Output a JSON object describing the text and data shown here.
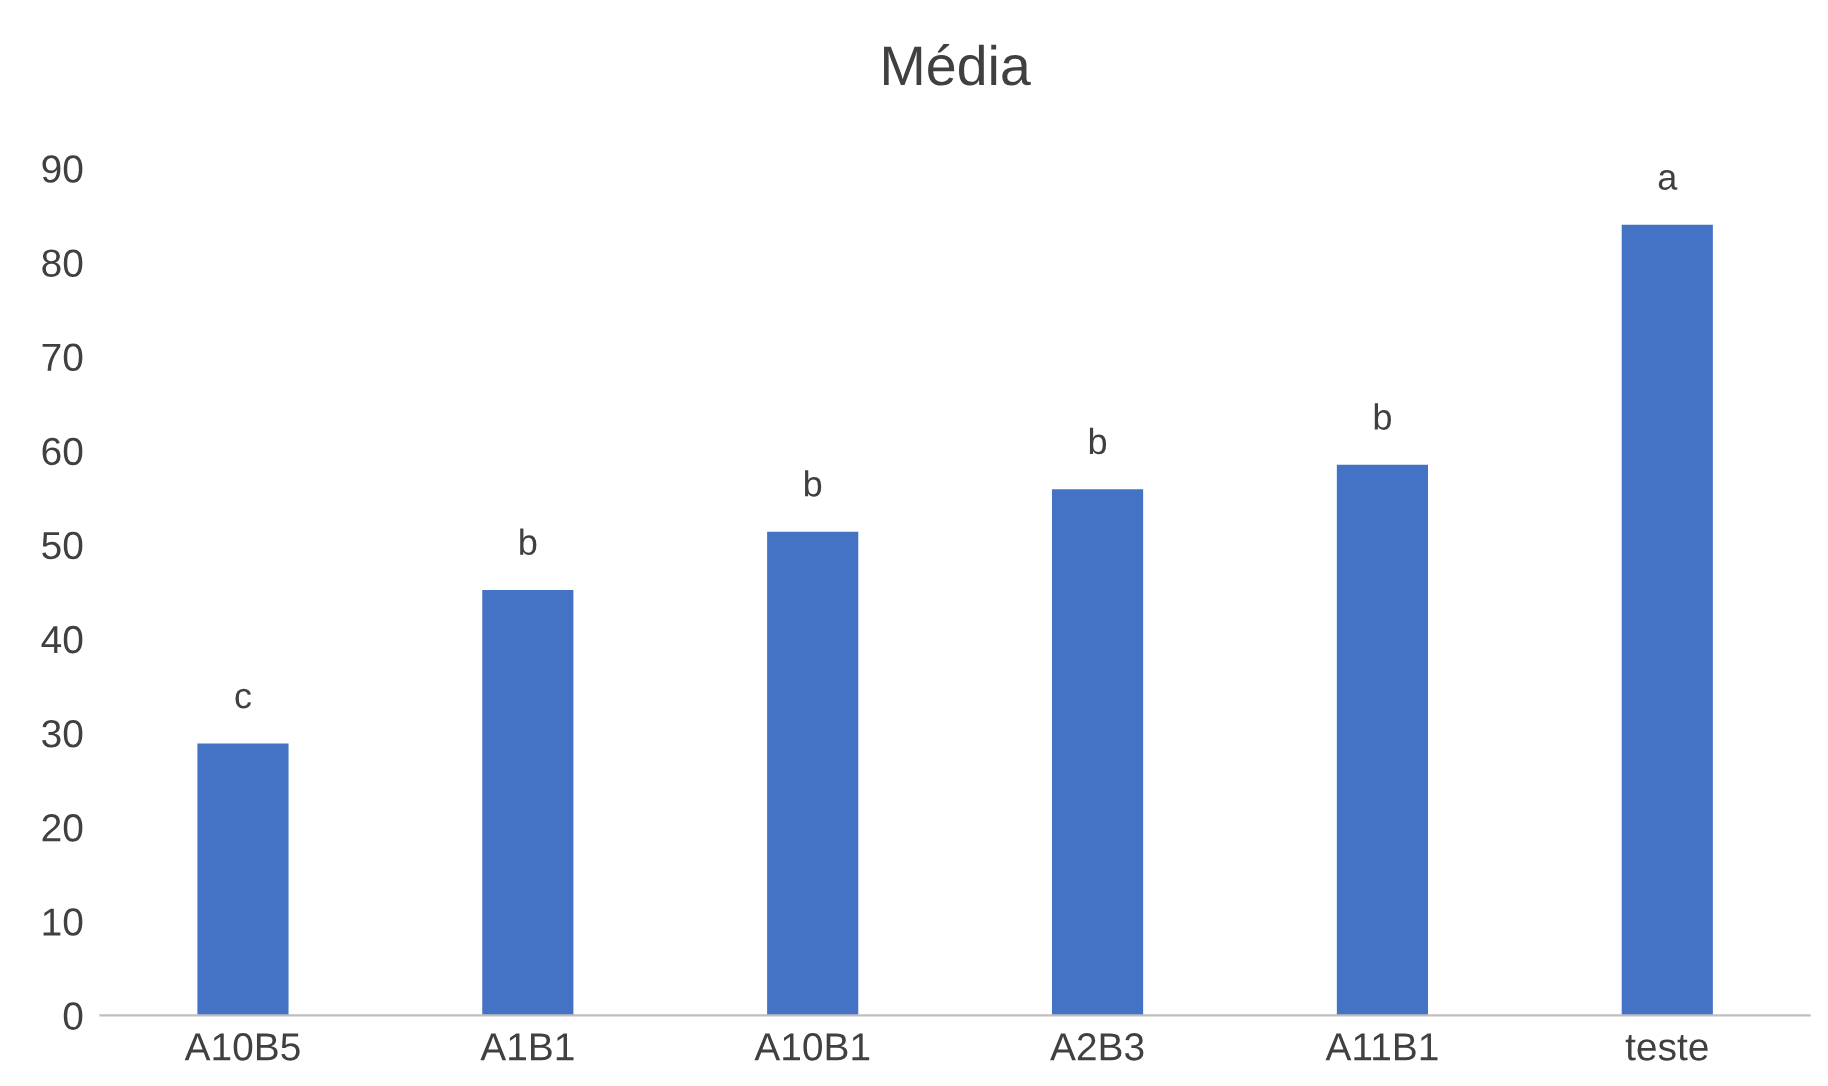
{
  "chart_data": {
    "type": "bar",
    "title": "Média",
    "categories": [
      "A10B5",
      "A1B1",
      "A10B1",
      "A2B3",
      "A11B1",
      "teste"
    ],
    "values": [
      28.9,
      45.2,
      51.4,
      55.9,
      58.5,
      84.0
    ],
    "color": "#4472c4",
    "ylim": [
      0,
      90
    ],
    "yticks": [
      0,
      10,
      20,
      30,
      40,
      50,
      60,
      70,
      80,
      90
    ],
    "grid": false,
    "legend": false,
    "annotations": [
      {
        "text": "c",
        "x": "A10B5",
        "y": 28.9
      },
      {
        "text": "b",
        "x": "A1B1",
        "y": 45.2
      },
      {
        "text": "b",
        "x": "A10B1",
        "y": 51.4
      },
      {
        "text": "b",
        "x": "A2B3",
        "y": 55.9
      },
      {
        "text": "b",
        "x": "A11B1",
        "y": 58.5
      },
      {
        "text": "a",
        "x": "teste",
        "y": 84.0
      }
    ]
  }
}
